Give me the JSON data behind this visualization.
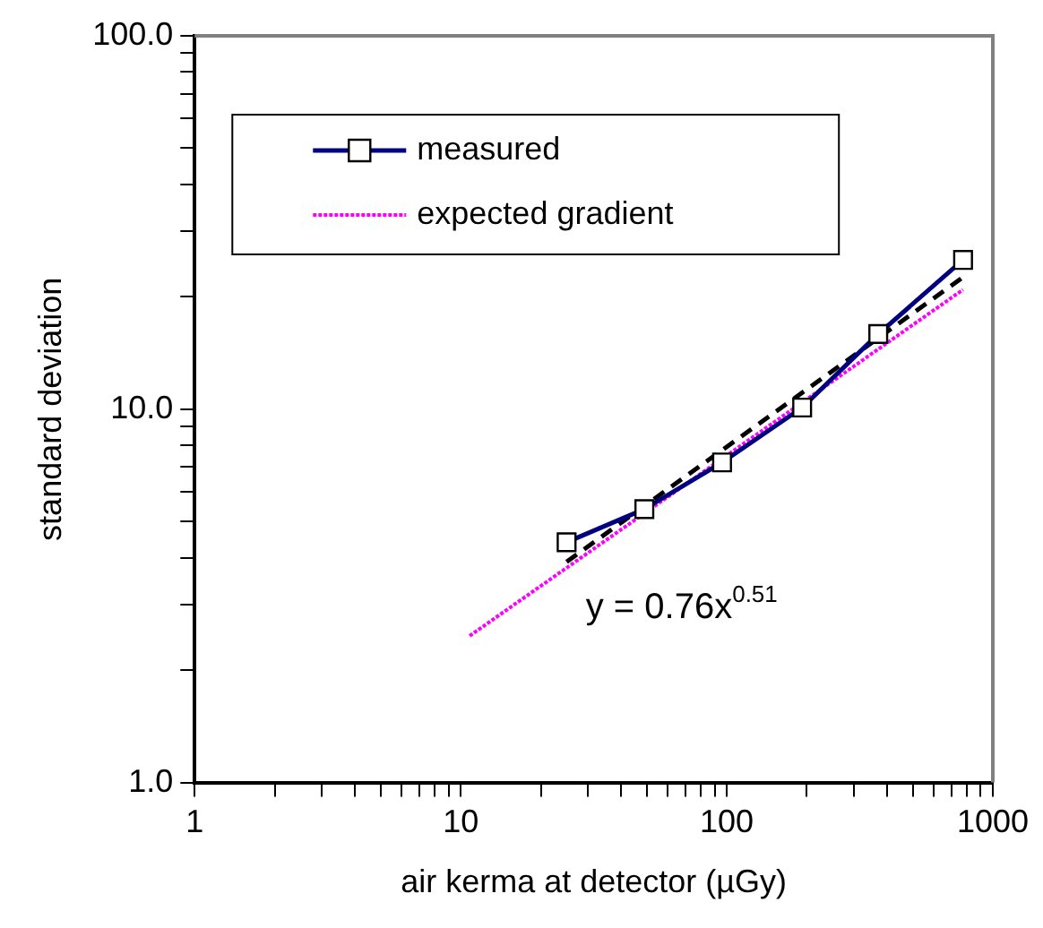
{
  "chart_data": {
    "type": "line",
    "xlabel": "air kerma at detector (µGy)",
    "ylabel": "standard deviation",
    "log": "xy",
    "grid": false,
    "legend": "top left",
    "xlim": [
      1,
      1000
    ],
    "ylim": [
      1,
      100
    ],
    "xticks": [
      1,
      {
        "value": 2,
        "label": null
      },
      {
        "value": 3,
        "label": null
      },
      {
        "value": 4,
        "label": null
      },
      {
        "value": 5,
        "label": null
      },
      {
        "value": 6,
        "label": null
      },
      {
        "value": 7,
        "label": null
      },
      {
        "value": 8,
        "label": null
      },
      {
        "value": 9,
        "label": null
      },
      10,
      {
        "value": 20,
        "label": null
      },
      {
        "value": 30,
        "label": null
      },
      {
        "value": 40,
        "label": null
      },
      {
        "value": 50,
        "label": null
      },
      {
        "value": 60,
        "label": null
      },
      {
        "value": 70,
        "label": null
      },
      {
        "value": 80,
        "label": null
      },
      {
        "value": 90,
        "label": null
      },
      100,
      {
        "value": 200,
        "label": null
      },
      {
        "value": 300,
        "label": null
      },
      {
        "value": 400,
        "label": null
      },
      {
        "value": 500,
        "label": null
      },
      {
        "value": 600,
        "label": null
      },
      {
        "value": 700,
        "label": null
      },
      {
        "value": 800,
        "label": null
      },
      {
        "value": 900,
        "label": null
      },
      1000
    ],
    "yticks": [
      {
        "value": 1,
        "label": "1.0"
      },
      {
        "value": 2,
        "label": null
      },
      {
        "value": 3,
        "label": null
      },
      {
        "value": 4,
        "label": null
      },
      {
        "value": 5,
        "label": null
      },
      {
        "value": 6,
        "label": null
      },
      {
        "value": 7,
        "label": null
      },
      {
        "value": 8,
        "label": null
      },
      {
        "value": 9,
        "label": null
      },
      {
        "value": 10,
        "label": "10.0"
      },
      {
        "value": 20,
        "label": null
      },
      {
        "value": 30,
        "label": null
      },
      {
        "value": 40,
        "label": null
      },
      {
        "value": 50,
        "label": null
      },
      {
        "value": 60,
        "label": null
      },
      {
        "value": 70,
        "label": null
      },
      {
        "value": 80,
        "label": null
      },
      {
        "value": 90,
        "label": null
      },
      {
        "value": 100,
        "label": "100.0"
      }
    ],
    "series": [
      {
        "name": "measured",
        "color": "#000080",
        "marker": "square",
        "line_style": "solid",
        "x": [
          25,
          49,
          96,
          192,
          371,
          773
        ],
        "values": [
          4.4,
          5.4,
          7.2,
          10.1,
          15.9,
          25.1
        ]
      },
      {
        "name": "expected gradient",
        "color": "#ff00ff",
        "marker": "none",
        "line_style": "dotted",
        "x": [
          10.8,
          773
        ],
        "values": [
          2.47,
          20.9
        ]
      },
      {
        "color": "#000000",
        "marker": "none",
        "line_style": "dashed",
        "x": [
          25,
          775
        ],
        "values": [
          3.9,
          22.6
        ]
      }
    ],
    "annotations": [
      "y = 0.76x$^{0.51}$"
    ]
  }
}
